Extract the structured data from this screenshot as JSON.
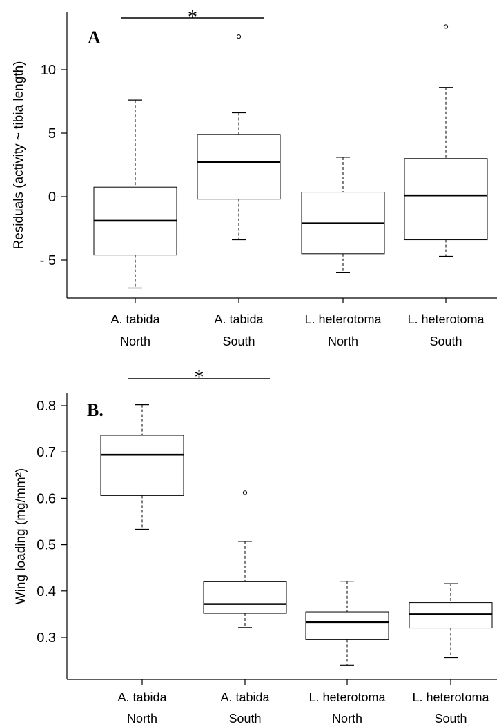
{
  "chart_data": [
    {
      "type": "box",
      "panel_label": "A",
      "ylabel": "Residuals (activity ~ tibia length)",
      "ylim": [
        -8,
        14
      ],
      "yticks": [
        10,
        5,
        0,
        -5
      ],
      "ytick_labels": [
        "10",
        "5",
        "0",
        "- 5"
      ],
      "categories": [
        {
          "line1": "A. tabida",
          "line2": "North"
        },
        {
          "line1": "A. tabida",
          "line2": "South"
        },
        {
          "line1": "L. heterotoma",
          "line2": "North"
        },
        {
          "line1": "L. heterotoma",
          "line2": "South"
        }
      ],
      "boxes": [
        {
          "whislo": -7.2,
          "q1": -4.6,
          "med": -1.9,
          "q3": 0.75,
          "whishi": 7.6,
          "fliers": []
        },
        {
          "whislo": -3.4,
          "q1": -0.2,
          "med": 2.7,
          "q3": 4.9,
          "whishi": 6.6,
          "fliers": [
            12.6
          ]
        },
        {
          "whislo": -6.0,
          "q1": -4.5,
          "med": -2.1,
          "q3": 0.35,
          "whishi": 3.1,
          "fliers": []
        },
        {
          "whislo": -4.7,
          "q1": -3.4,
          "med": 0.1,
          "q3": 3.0,
          "whishi": 8.6,
          "fliers": [
            13.4
          ]
        }
      ],
      "significance": {
        "from": 0,
        "to": 1,
        "label": "*"
      }
    },
    {
      "type": "box",
      "panel_label": "B.",
      "ylabel": "Wing loading (mg/mm²)",
      "ylim": [
        0.22,
        0.83
      ],
      "yticks": [
        0.8,
        0.7,
        0.6,
        0.5,
        0.4,
        0.3
      ],
      "ytick_labels": [
        "0.8",
        "0.7",
        "0.6",
        "0.5",
        "0.4",
        "0.3"
      ],
      "categories": [
        {
          "line1": "A. tabida",
          "line2": "North"
        },
        {
          "line1": "A. tabida",
          "line2": "South"
        },
        {
          "line1": "L. heterotoma",
          "line2": "North"
        },
        {
          "line1": "L. heterotoma",
          "line2": "South"
        }
      ],
      "boxes": [
        {
          "whislo": 0.533,
          "q1": 0.606,
          "med": 0.694,
          "q3": 0.736,
          "whishi": 0.802,
          "fliers": []
        },
        {
          "whislo": 0.321,
          "q1": 0.352,
          "med": 0.372,
          "q3": 0.42,
          "whishi": 0.507,
          "fliers": [
            0.612
          ]
        },
        {
          "whislo": 0.24,
          "q1": 0.295,
          "med": 0.333,
          "q3": 0.355,
          "whishi": 0.421,
          "fliers": []
        },
        {
          "whislo": 0.256,
          "q1": 0.32,
          "med": 0.35,
          "q3": 0.375,
          "whishi": 0.416,
          "fliers": []
        }
      ],
      "significance": {
        "from": 0,
        "to": 1,
        "label": "*"
      }
    }
  ]
}
